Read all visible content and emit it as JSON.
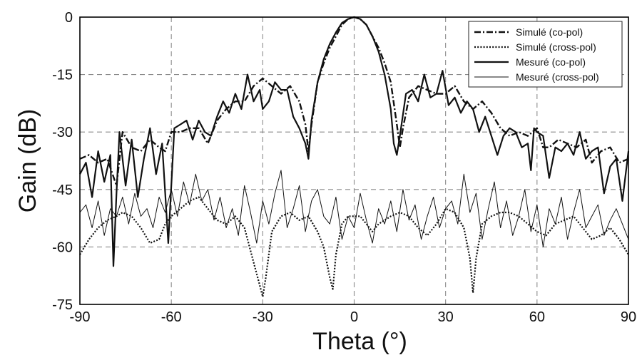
{
  "chart_data": {
    "type": "line",
    "title": "",
    "xlabel": "Theta (°)",
    "ylabel": "Gain (dB)",
    "xlim": [
      -90,
      90
    ],
    "ylim": [
      -75,
      0
    ],
    "xticks": [
      -90,
      -60,
      -30,
      0,
      30,
      60,
      90
    ],
    "yticks": [
      0,
      -15,
      -30,
      -45,
      -60,
      -75
    ],
    "xtick_labels": [
      "-90",
      "-60",
      "-30",
      "0",
      "30",
      "60",
      "90"
    ],
    "ytick_labels": [
      "0",
      "-15",
      "-30",
      "-45",
      "-60",
      "-75"
    ],
    "grid": true,
    "legend_position": "top-right",
    "series": [
      {
        "name": "Simulé (co-pol)",
        "style": "dash-dot",
        "color": "#111111",
        "x": [
          -90,
          -87,
          -84,
          -81,
          -78,
          -76,
          -73,
          -70,
          -67,
          -64,
          -62,
          -60,
          -57,
          -54,
          -51,
          -48,
          -45,
          -42,
          -39,
          -36,
          -33,
          -30,
          -27,
          -24,
          -21,
          -18,
          -16,
          -15,
          -14,
          -12,
          -10,
          -8,
          -6,
          -4,
          -2,
          0,
          2,
          4,
          6,
          8,
          10,
          12,
          14,
          15,
          16,
          18,
          21,
          24,
          27,
          30,
          33,
          36,
          39,
          42,
          45,
          48,
          51,
          54,
          57,
          60,
          62,
          64,
          67,
          70,
          73,
          76,
          78,
          81,
          84,
          87,
          90
        ],
        "y": [
          -37,
          -36,
          -38,
          -37,
          -44,
          -30,
          -34,
          -35,
          -32,
          -34,
          -35,
          -30,
          -30,
          -29,
          -29,
          -33,
          -27,
          -24,
          -22,
          -22,
          -18,
          -16,
          -18,
          -20,
          -18,
          -22,
          -28,
          -35,
          -28,
          -17,
          -12,
          -8,
          -5,
          -2,
          -0.5,
          0,
          -0.5,
          -2,
          -5,
          -8,
          -12,
          -17,
          -28,
          -34,
          -29,
          -21,
          -18,
          -19,
          -20,
          -20,
          -18,
          -22,
          -24,
          -22,
          -25,
          -29,
          -31,
          -30,
          -31,
          -29,
          -34,
          -34,
          -32,
          -33,
          -34,
          -32,
          -38,
          -35,
          -34,
          -38,
          -37
        ]
      },
      {
        "name": "Simulé (cross-pol)",
        "style": "dotted",
        "color": "#111111",
        "x": [
          -90,
          -87,
          -84,
          -81,
          -78,
          -76,
          -73,
          -70,
          -67,
          -64,
          -62,
          -60,
          -57,
          -54,
          -51,
          -48,
          -45,
          -42,
          -39,
          -36,
          -33,
          -31,
          -30,
          -29,
          -27,
          -24,
          -21,
          -18,
          -15,
          -12,
          -10,
          -8,
          -7,
          -6,
          -4,
          -2,
          0,
          2,
          4,
          6,
          8,
          10,
          12,
          15,
          18,
          21,
          24,
          27,
          30,
          33,
          36,
          38,
          39,
          40,
          42,
          45,
          48,
          51,
          54,
          57,
          60,
          63,
          66,
          69,
          72,
          75,
          78,
          81,
          84,
          87,
          90
        ],
        "y": [
          -62,
          -58,
          -55,
          -53,
          -52,
          -51,
          -52,
          -55,
          -59,
          -58,
          -54,
          -52,
          -50,
          -48,
          -47,
          -50,
          -53,
          -54,
          -52,
          -55,
          -64,
          -70,
          -73,
          -68,
          -56,
          -52,
          -51,
          -53,
          -52,
          -56,
          -60,
          -68,
          -71,
          -62,
          -54,
          -52,
          -52,
          -52,
          -54,
          -56,
          -54,
          -53,
          -52,
          -51,
          -52,
          -55,
          -57,
          -54,
          -50,
          -51,
          -55,
          -63,
          -72,
          -63,
          -54,
          -52,
          -51,
          -51,
          -52,
          -54,
          -56,
          -57,
          -54,
          -53,
          -52,
          -55,
          -58,
          -57,
          -55,
          -58,
          -62
        ]
      },
      {
        "name": "Mesuré (co-pol)",
        "style": "solid-thick",
        "color": "#111111",
        "x": [
          -90,
          -88,
          -86,
          -84,
          -82,
          -80,
          -79,
          -78,
          -77,
          -75,
          -73,
          -71,
          -69,
          -67,
          -65,
          -63,
          -61,
          -59,
          -57,
          -55,
          -53,
          -51,
          -49,
          -47,
          -45,
          -43,
          -41,
          -39,
          -37,
          -35,
          -33,
          -31,
          -30,
          -28,
          -26,
          -24,
          -22,
          -20,
          -18,
          -16,
          -15,
          -14,
          -12,
          -10,
          -8,
          -6,
          -4,
          -2,
          0,
          2,
          4,
          6,
          8,
          10,
          12,
          13,
          14,
          15,
          17,
          19,
          21,
          23,
          25,
          27,
          29,
          31,
          33,
          35,
          37,
          39,
          41,
          43,
          45,
          47,
          49,
          51,
          53,
          55,
          57,
          58,
          59,
          60,
          62,
          64,
          66,
          68,
          70,
          72,
          74,
          76,
          78,
          80,
          82,
          84,
          86,
          88,
          90
        ],
        "y": [
          -41,
          -38,
          -47,
          -35,
          -43,
          -36,
          -65,
          -46,
          -30,
          -44,
          -32,
          -47,
          -37,
          -29,
          -41,
          -33,
          -59,
          -29,
          -28,
          -27,
          -32,
          -27,
          -30,
          -31,
          -26,
          -22,
          -25,
          -20,
          -24,
          -15,
          -22,
          -19,
          -24,
          -22,
          -17,
          -19,
          -19,
          -26,
          -29,
          -33,
          -37,
          -27,
          -17,
          -11,
          -7,
          -4,
          -1.5,
          -0.5,
          0,
          -0.5,
          -2,
          -5,
          -9,
          -15,
          -24,
          -33,
          -36,
          -31,
          -20,
          -19,
          -22,
          -15,
          -21,
          -20,
          -14,
          -23,
          -21,
          -25,
          -22,
          -24,
          -30,
          -26,
          -31,
          -36,
          -31,
          -29,
          -30,
          -34,
          -33,
          -40,
          -29,
          -30,
          -31,
          -42,
          -34,
          -35,
          -33,
          -36,
          -30,
          -37,
          -35,
          -34,
          -46,
          -39,
          -37,
          -48,
          -35
        ]
      },
      {
        "name": "Mesuré (cross-pol)",
        "style": "solid-thin",
        "color": "#111111",
        "x": [
          -90,
          -88,
          -86,
          -84,
          -82,
          -80,
          -78,
          -76,
          -74,
          -72,
          -70,
          -68,
          -66,
          -64,
          -62,
          -60,
          -58,
          -56,
          -54,
          -52,
          -50,
          -48,
          -46,
          -44,
          -42,
          -40,
          -38,
          -36,
          -34,
          -32,
          -30,
          -28,
          -26,
          -24,
          -22,
          -20,
          -18,
          -16,
          -14,
          -12,
          -10,
          -8,
          -6,
          -4,
          -2,
          0,
          2,
          4,
          6,
          8,
          10,
          12,
          14,
          16,
          18,
          20,
          22,
          24,
          26,
          28,
          30,
          32,
          34,
          36,
          38,
          40,
          42,
          44,
          46,
          48,
          50,
          52,
          54,
          56,
          58,
          60,
          62,
          64,
          66,
          68,
          70,
          72,
          74,
          76,
          78,
          80,
          82,
          84,
          86,
          88,
          90
        ],
        "y": [
          -51,
          -49,
          -55,
          -48,
          -57,
          -50,
          -52,
          -47,
          -54,
          -46,
          -52,
          -50,
          -55,
          -47,
          -51,
          -45,
          -52,
          -43,
          -49,
          -41,
          -48,
          -45,
          -53,
          -47,
          -55,
          -50,
          -57,
          -44,
          -51,
          -59,
          -48,
          -54,
          -46,
          -40,
          -55,
          -50,
          -44,
          -56,
          -48,
          -45,
          -52,
          -54,
          -47,
          -58,
          -52,
          -55,
          -46,
          -53,
          -59,
          -50,
          -54,
          -48,
          -56,
          -45,
          -53,
          -49,
          -58,
          -52,
          -47,
          -55,
          -50,
          -48,
          -54,
          -41,
          -51,
          -46,
          -58,
          -50,
          -43,
          -55,
          -48,
          -57,
          -52,
          -45,
          -56,
          -49,
          -60,
          -50,
          -54,
          -47,
          -58,
          -51,
          -45,
          -55,
          -52,
          -49,
          -57,
          -53,
          -50,
          -54,
          -58
        ]
      }
    ]
  }
}
